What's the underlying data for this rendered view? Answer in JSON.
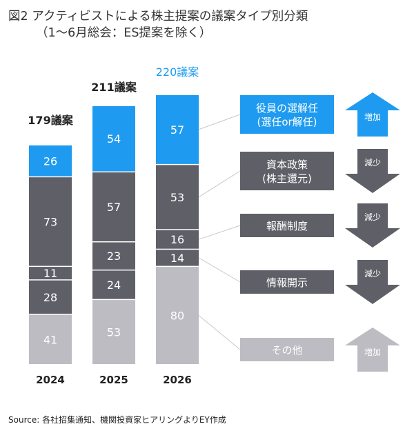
{
  "title_line1": "図2 アクティビストによる株主提案の議案タイプ別分類",
  "title_line2": "（1～6月総会：ES提案を除く）",
  "source": "Source: 各社招集通知、機関投資家ヒアリングよりEY作成",
  "colors": {
    "accent_blue": "#1e9bf0",
    "dark_gray": "#5f5f67",
    "light_gray": "#bcbcc2",
    "arrow_blue": "#1e9bf0",
    "arrow_dark": "#5f5f67",
    "arrow_light": "#bcbcc2"
  },
  "chart_data": {
    "type": "bar",
    "stacked": true,
    "categories": [
      "2024",
      "2025",
      "2026"
    ],
    "totals": [
      {
        "value": 179,
        "label": "179議案"
      },
      {
        "value": 211,
        "label": "211議案"
      },
      {
        "value": 220,
        "label": "220議案"
      }
    ],
    "series": [
      {
        "name": "その他",
        "values": [
          41,
          53,
          80
        ],
        "color": "#bcbcc2",
        "trend": "増加"
      },
      {
        "name": "情報開示",
        "values": [
          28,
          24,
          14
        ],
        "color": "#5f5f67",
        "trend": "減少"
      },
      {
        "name": "報酬制度",
        "values": [
          11,
          23,
          16
        ],
        "color": "#5f5f67",
        "trend": "減少"
      },
      {
        "name": "資本政策\n(株主還元)",
        "values": [
          73,
          57,
          53
        ],
        "color": "#5f5f67",
        "trend": "減少"
      },
      {
        "name": "役員の選解任\n(選任or解任)",
        "values": [
          26,
          54,
          57
        ],
        "color": "#1e9bf0",
        "trend": "増加"
      }
    ]
  }
}
